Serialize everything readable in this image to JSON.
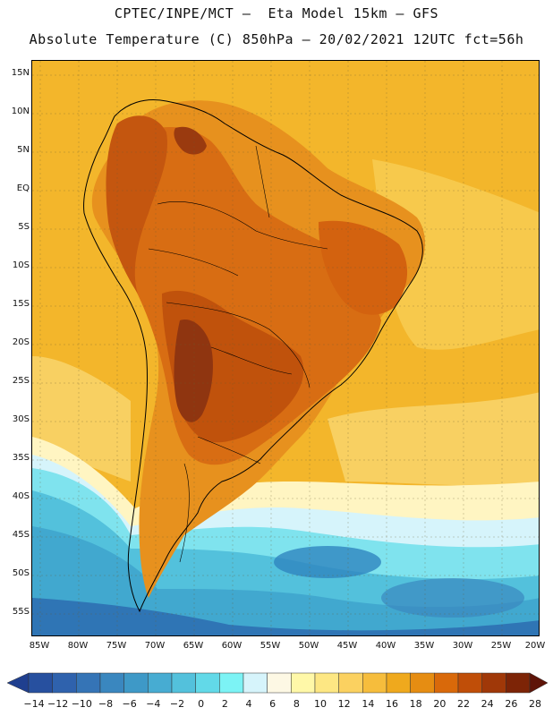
{
  "header": {
    "title_line1": "CPTEC/INPE/MCT –  Eta Model 15km – GFS",
    "title_line2": "Absolute Temperature (C) 850hPa – 20/02/2021 12UTC fct=56h"
  },
  "axes": {
    "lat_labels": [
      "15N",
      "10N",
      "5N",
      "EQ",
      "5S",
      "10S",
      "15S",
      "20S",
      "25S",
      "30S",
      "35S",
      "40S",
      "45S",
      "50S",
      "55S"
    ],
    "lon_labels": [
      "85W",
      "80W",
      "75W",
      "70W",
      "65W",
      "60W",
      "55W",
      "50W",
      "45W",
      "40W",
      "35W",
      "30W",
      "25W",
      "20W"
    ]
  },
  "colorbar": {
    "labels": [
      "−14",
      "−12",
      "−10",
      "−8",
      "−6",
      "−4",
      "−2",
      "0",
      "2",
      "4",
      "6",
      "8",
      "10",
      "12",
      "14",
      "16",
      "18",
      "20",
      "22",
      "24",
      "26",
      "28"
    ],
    "colors": [
      "#1f3f8f",
      "#27509f",
      "#2f62ad",
      "#3574b6",
      "#3a87bf",
      "#3e99c7",
      "#47acd2",
      "#53c1dc",
      "#62d9e8",
      "#7cf3f5",
      "#d6f4fb",
      "#fdf8e4",
      "#fff8a8",
      "#fde783",
      "#fbd160",
      "#f6bd3c",
      "#efa91d",
      "#e68d12",
      "#d9690a",
      "#c04e08",
      "#a03808",
      "#7d2406",
      "#5e1408"
    ]
  },
  "map": {
    "colors": {
      "ocean_warm": "#f3b62b",
      "ocean_mid": "#f7c94c",
      "land_hot": "#d86d13",
      "land_core": "#c0520c",
      "land_max": "#8f3510",
      "cold_pale": "#fff5c2",
      "cold_cyan": "#7fe3ee",
      "cold_blue": "#41a8cf",
      "cold_deep": "#2f75b5"
    }
  }
}
